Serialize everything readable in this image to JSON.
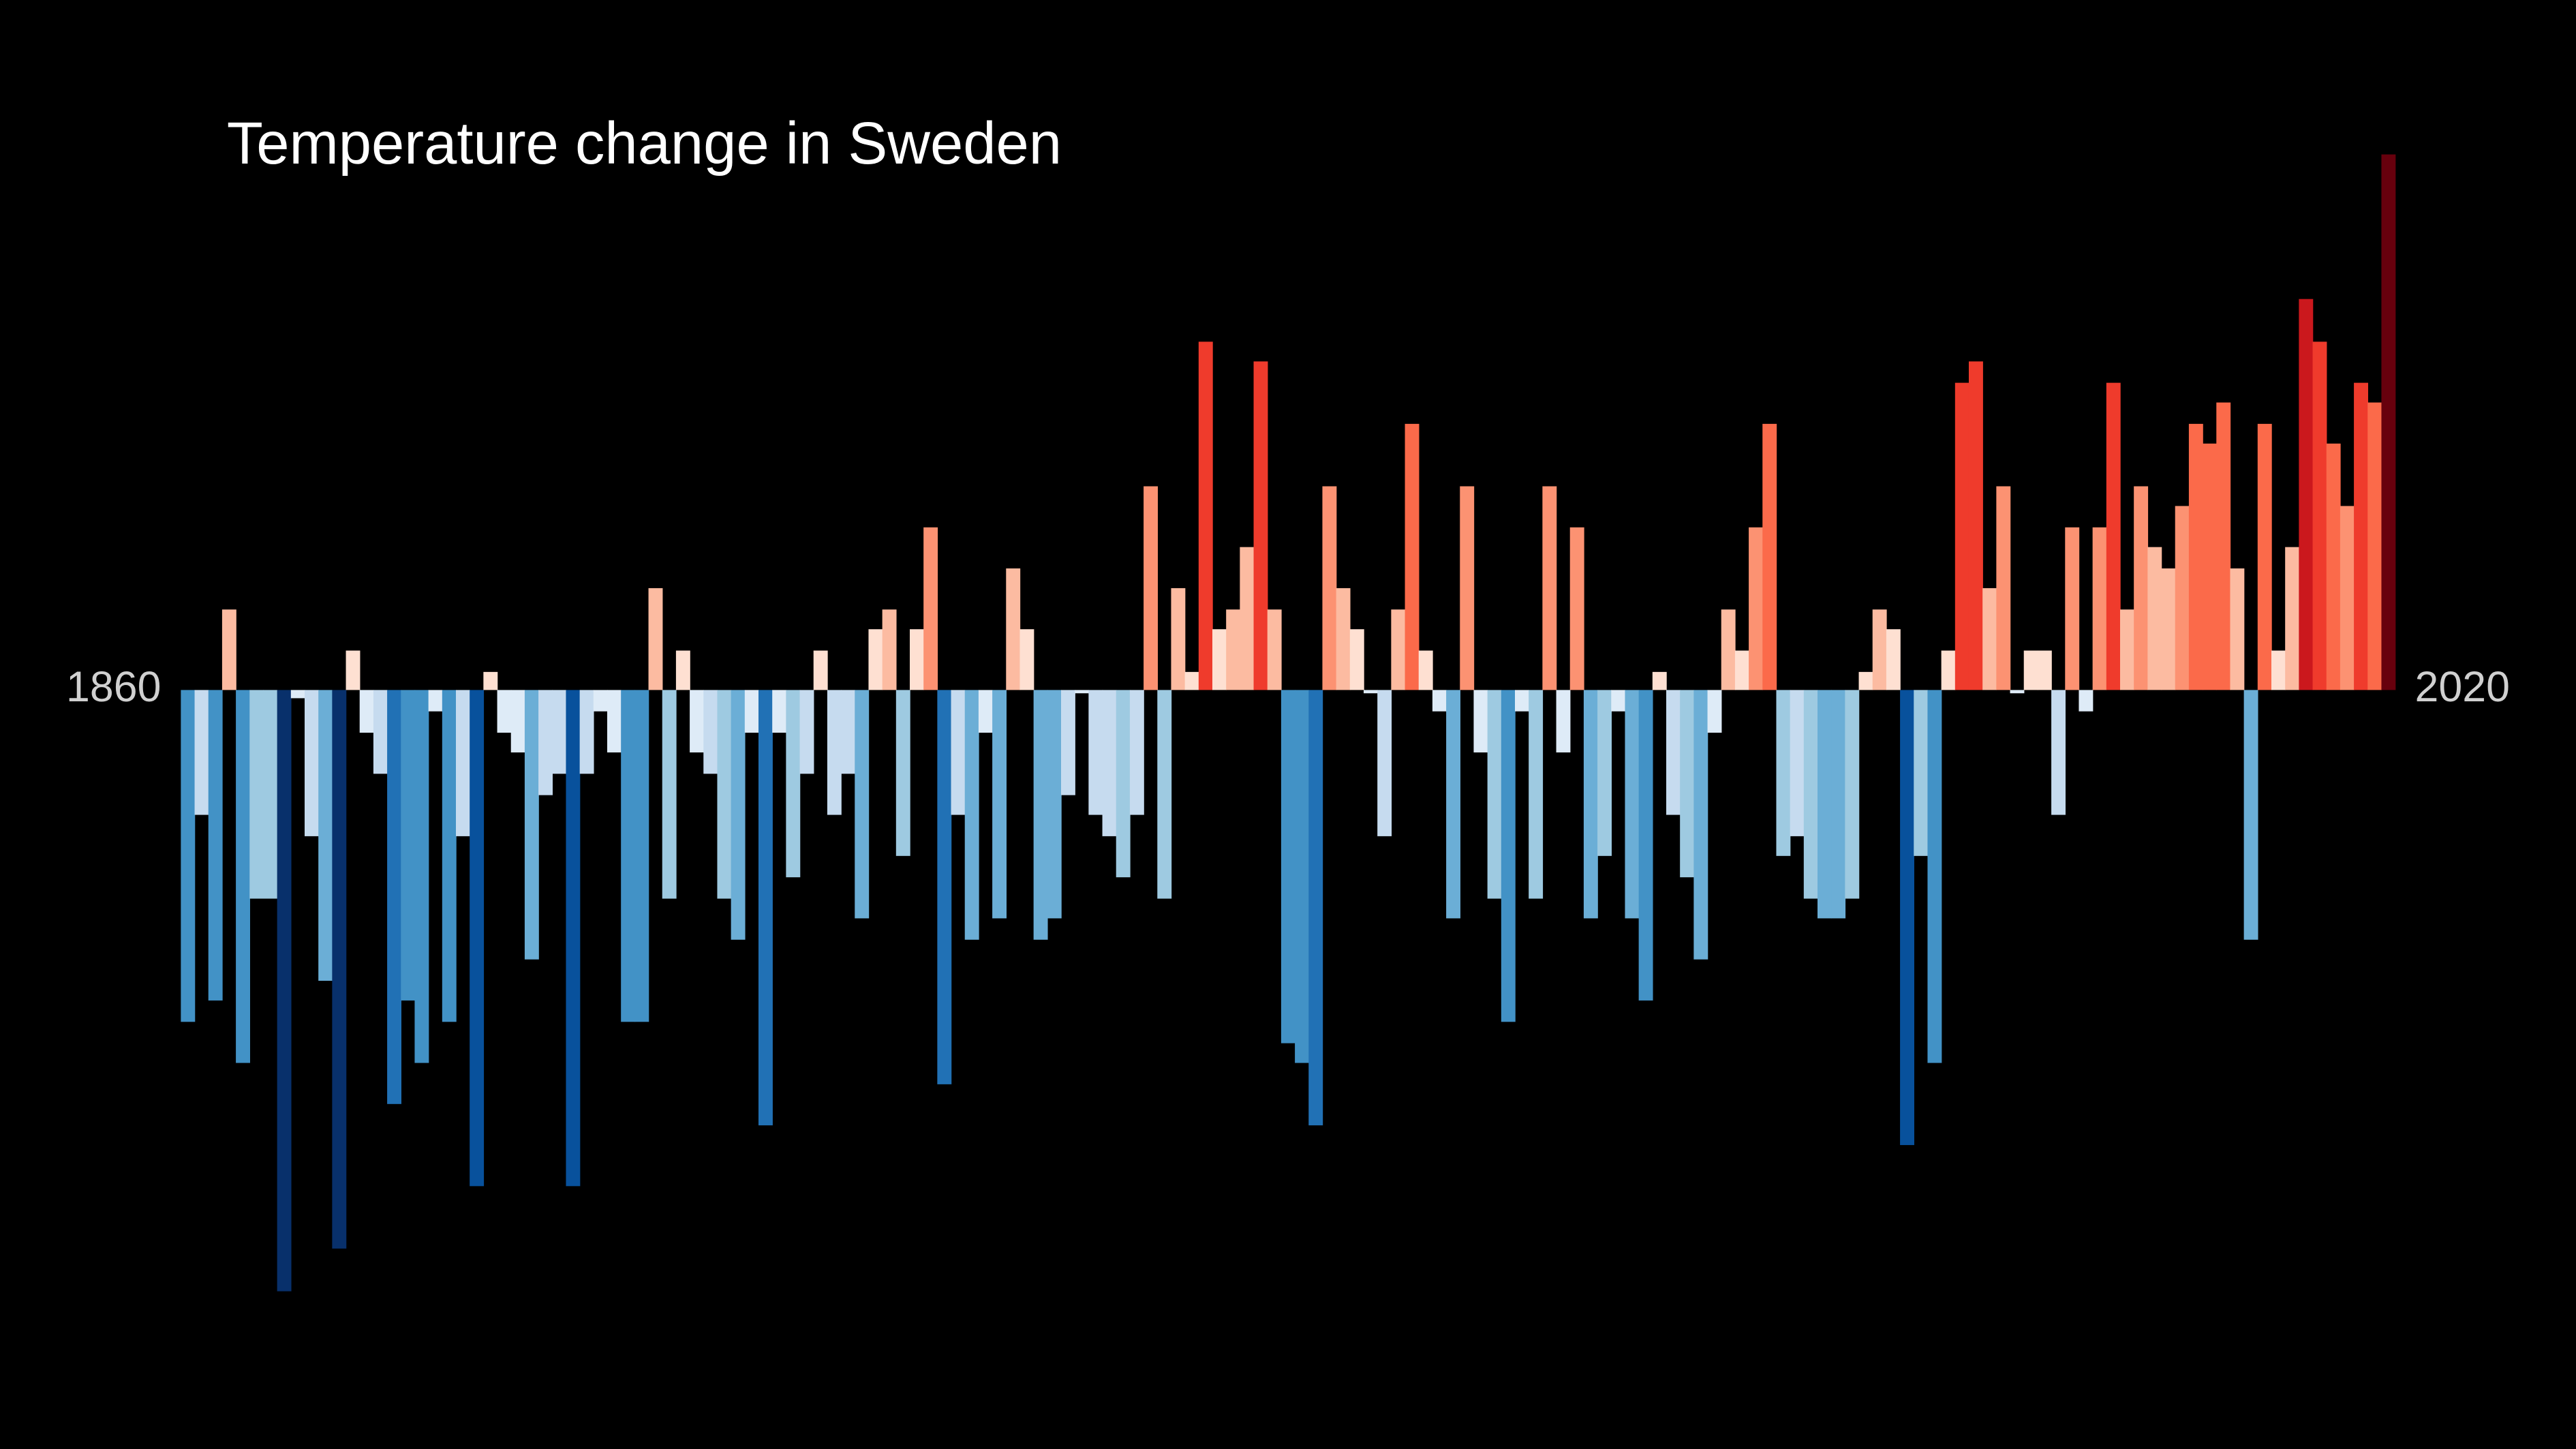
{
  "chart_data": {
    "type": "bar",
    "title": "Temperature change in Sweden",
    "x": [
      1860,
      1861,
      1862,
      1863,
      1864,
      1865,
      1866,
      1867,
      1868,
      1869,
      1870,
      1871,
      1872,
      1873,
      1874,
      1875,
      1876,
      1877,
      1878,
      1879,
      1880,
      1881,
      1882,
      1883,
      1884,
      1885,
      1886,
      1887,
      1888,
      1889,
      1890,
      1891,
      1892,
      1893,
      1894,
      1895,
      1896,
      1897,
      1898,
      1899,
      1900,
      1901,
      1902,
      1903,
      1904,
      1905,
      1906,
      1907,
      1908,
      1909,
      1910,
      1911,
      1912,
      1913,
      1914,
      1915,
      1916,
      1917,
      1918,
      1919,
      1920,
      1921,
      1922,
      1923,
      1924,
      1925,
      1926,
      1927,
      1928,
      1929,
      1930,
      1931,
      1932,
      1933,
      1934,
      1935,
      1936,
      1937,
      1938,
      1939,
      1940,
      1941,
      1942,
      1943,
      1944,
      1945,
      1946,
      1947,
      1948,
      1949,
      1950,
      1951,
      1952,
      1953,
      1954,
      1955,
      1956,
      1957,
      1958,
      1959,
      1960,
      1961,
      1962,
      1963,
      1964,
      1965,
      1966,
      1967,
      1968,
      1969,
      1970,
      1971,
      1972,
      1973,
      1974,
      1975,
      1976,
      1977,
      1978,
      1979,
      1980,
      1981,
      1982,
      1983,
      1984,
      1985,
      1986,
      1987,
      1988,
      1989,
      1990,
      1991,
      1992,
      1993,
      1994,
      1995,
      1996,
      1997,
      1998,
      1999,
      2000,
      2001,
      2002,
      2003,
      2004,
      2005,
      2006,
      2007,
      2008,
      2009,
      2010,
      2011,
      2012,
      2013,
      2014,
      2015,
      2016,
      2017,
      2018,
      2019,
      2020
    ],
    "values": [
      -2.02,
      -0.76,
      -1.89,
      0.49,
      -2.27,
      -1.27,
      -1.27,
      -3.66,
      -0.05,
      -0.89,
      -1.77,
      -3.4,
      0.24,
      -0.26,
      -0.51,
      -2.52,
      -1.89,
      -2.27,
      -0.13,
      -2.02,
      -0.89,
      -3.02,
      0.11,
      -0.26,
      -0.38,
      -1.64,
      -0.64,
      -0.51,
      -3.02,
      -0.51,
      -0.13,
      -0.38,
      -2.02,
      -2.02,
      0.62,
      -1.27,
      0.24,
      -0.38,
      -0.51,
      -1.27,
      -1.52,
      -0.26,
      -2.65,
      -0.26,
      -1.14,
      -0.51,
      0.24,
      -0.76,
      -0.51,
      -1.39,
      0.37,
      0.49,
      -1.01,
      0.37,
      0.99,
      -2.4,
      -0.76,
      -1.52,
      -0.26,
      -1.39,
      0.74,
      0.37,
      -1.52,
      -1.39,
      -0.64,
      -0.02,
      -0.76,
      -0.89,
      -1.14,
      -0.76,
      1.24,
      -1.27,
      0.62,
      0.11,
      2.12,
      0.37,
      0.49,
      0.87,
      2.0,
      0.49,
      -2.15,
      -2.27,
      -2.65,
      1.24,
      0.62,
      0.37,
      -0.02,
      -0.89,
      0.49,
      1.62,
      0.24,
      -0.13,
      -1.39,
      1.24,
      -0.38,
      -1.27,
      -2.02,
      -0.13,
      -1.27,
      1.24,
      -0.38,
      0.99,
      -1.39,
      -1.01,
      -0.13,
      -1.39,
      -1.89,
      0.11,
      -0.76,
      -1.14,
      -1.64,
      -0.26,
      0.49,
      0.24,
      0.99,
      1.62,
      -1.01,
      -0.89,
      -1.27,
      -1.39,
      -1.39,
      -1.27,
      0.11,
      0.49,
      0.37,
      -2.77,
      -1.01,
      -2.27,
      0.24,
      1.87,
      2.0,
      0.62,
      1.24,
      -0.02,
      0.24,
      0.24,
      -0.76,
      0.99,
      -0.13,
      0.99,
      1.87,
      0.49,
      1.24,
      0.87,
      0.74,
      1.12,
      1.62,
      1.5,
      1.75,
      0.74,
      -1.52,
      1.62,
      0.24,
      0.87,
      2.38,
      2.12,
      1.5,
      1.12,
      1.87,
      1.75,
      3.26
    ],
    "colors": [
      "#08306b",
      "#08519c",
      "#2171b5",
      "#4292c6",
      "#6baed6",
      "#9ecae1",
      "#c6dbef",
      "#deebf7",
      "#fee0d2",
      "#fcbba1",
      "#fc9272",
      "#fb6a4a",
      "#ef3b2c",
      "#cb181d",
      "#a50f15",
      "#67000d"
    ],
    "ylim": [
      -4.62,
      4.2
    ]
  }
}
